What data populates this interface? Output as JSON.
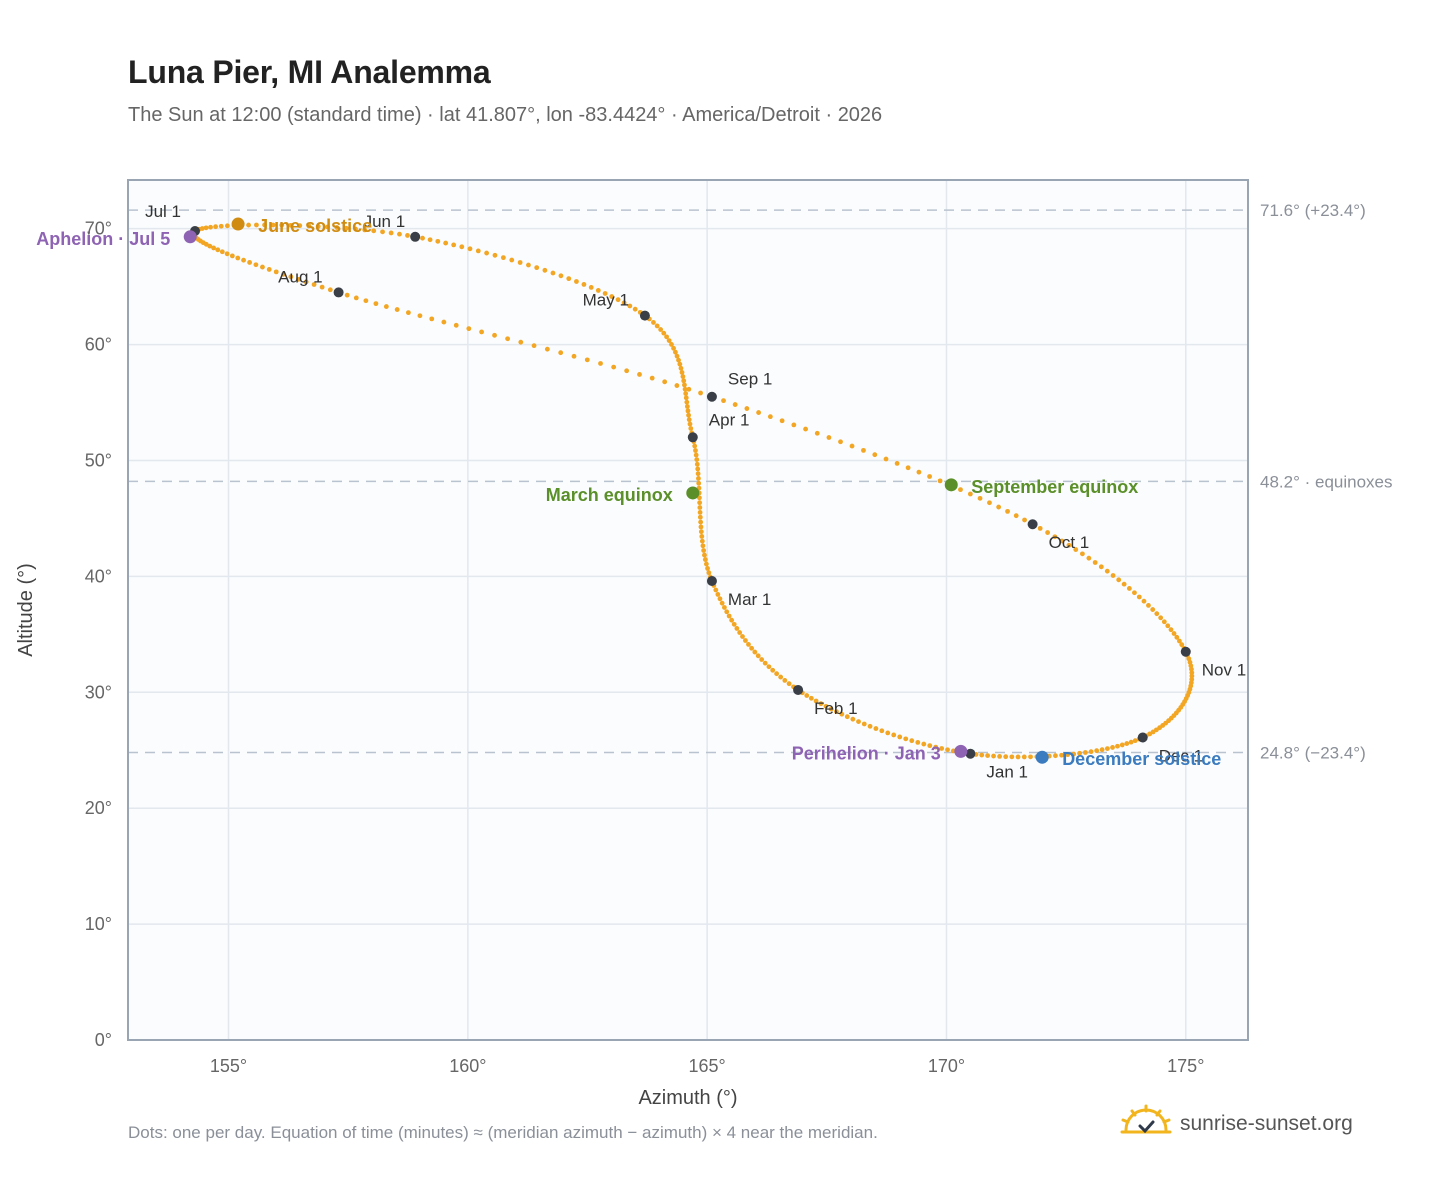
{
  "header": {
    "title": "Luna Pier, MI Analemma",
    "subtitle": "The Sun at 12:00 (standard time) · lat 41.807°, lon -83.4424° · America/Detroit · 2026"
  },
  "footer": {
    "note": "Dots: one per day. Equation of time (minutes) ≈ (meridian azimuth − azimuth) × 4 near the meridian.",
    "brand": "sunrise-sunset.org"
  },
  "colors": {
    "analemma": "#f2a623",
    "month_marker": "#3a3f47",
    "equinox": "#5b8f29",
    "june_solstice": "#d08c12",
    "december_solstice": "#3b7bbf",
    "apsis": "#8e63b3",
    "plot_bg": "#fafcfe",
    "grid": "#e3e8ee",
    "reference_line": "#b9c3cf",
    "frame": "#9aa5b4"
  },
  "chart_data": {
    "type": "scatter",
    "title": "Luna Pier, MI Analemma",
    "xlabel": "Azimuth (°)",
    "ylabel": "Altitude (°)",
    "xlim": [
      152.9,
      176.3
    ],
    "ylim": [
      0,
      74.2
    ],
    "x_ticks": [
      155,
      160,
      165,
      170,
      175
    ],
    "y_ticks": [
      0,
      10,
      20,
      30,
      40,
      50,
      60,
      70
    ],
    "x_tick_labels": [
      "155°",
      "160°",
      "165°",
      "170°",
      "175°"
    ],
    "y_tick_labels": [
      "0°",
      "10°",
      "20°",
      "30°",
      "40°",
      "50°",
      "60°",
      "70°"
    ],
    "grid": true,
    "reference_lines": [
      {
        "y": 71.6,
        "label": "71.6° (+23.4°)"
      },
      {
        "y": 48.2,
        "label": "48.2° · equinoxes"
      },
      {
        "y": 24.8,
        "label": "24.8° (−23.4°)"
      }
    ],
    "month_markers": [
      {
        "label": "Jan 1",
        "az": 170.5,
        "alt": 24.7
      },
      {
        "label": "Feb 1",
        "az": 166.9,
        "alt": 30.2
      },
      {
        "label": "Mar 1",
        "az": 165.1,
        "alt": 39.6
      },
      {
        "label": "Apr 1",
        "az": 164.7,
        "alt": 52.0
      },
      {
        "label": "May 1",
        "az": 163.7,
        "alt": 62.5
      },
      {
        "label": "Jun 1",
        "az": 158.9,
        "alt": 69.3
      },
      {
        "label": "Jul 1",
        "az": 154.3,
        "alt": 69.8
      },
      {
        "label": "Aug 1",
        "az": 157.3,
        "alt": 64.5
      },
      {
        "label": "Sep 1",
        "az": 165.1,
        "alt": 55.5
      },
      {
        "label": "Oct 1",
        "az": 171.8,
        "alt": 44.5
      },
      {
        "label": "Nov 1",
        "az": 175.0,
        "alt": 33.5
      },
      {
        "label": "Dec 1",
        "az": 174.1,
        "alt": 26.1
      }
    ],
    "events": [
      {
        "label": "March equinox",
        "az": 164.7,
        "alt": 47.2,
        "color": "#5b8f29"
      },
      {
        "label": "June solstice",
        "az": 155.2,
        "alt": 70.4,
        "color": "#d08c12"
      },
      {
        "label": "September equinox",
        "az": 170.1,
        "alt": 47.9,
        "color": "#5b8f29"
      },
      {
        "label": "December solstice",
        "az": 172.0,
        "alt": 24.4,
        "color": "#3b7bbf"
      },
      {
        "label": "Aphelion · Jul 5",
        "az": 154.2,
        "alt": 69.3,
        "color": "#8e63b3"
      },
      {
        "label": "Perihelion · Jan 3",
        "az": 170.3,
        "alt": 24.9,
        "color": "#8e63b3"
      }
    ]
  }
}
